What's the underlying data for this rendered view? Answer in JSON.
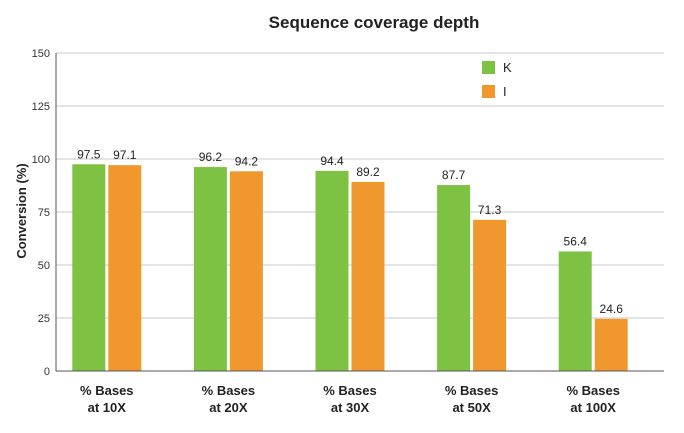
{
  "chart_data": {
    "type": "bar",
    "title": "Sequence coverage depth",
    "ylabel": "Conversion (%)",
    "xlabel": "",
    "ylim": [
      0,
      150
    ],
    "yticks": [
      0,
      25,
      50,
      75,
      100,
      125,
      150
    ],
    "grid": true,
    "legend_position": "top-right",
    "categories": [
      [
        "% Bases",
        "at 10X"
      ],
      [
        "% Bases",
        "at 20X"
      ],
      [
        "% Bases",
        "at 30X"
      ],
      [
        "% Bases",
        "at 50X"
      ],
      [
        "% Bases",
        "at 100X"
      ]
    ],
    "series": [
      {
        "name": "K",
        "color": "#7dc242",
        "values": [
          97.5,
          96.2,
          94.4,
          87.7,
          56.4
        ]
      },
      {
        "name": "I",
        "color": "#f0982e",
        "values": [
          97.1,
          94.2,
          89.2,
          71.3,
          24.6
        ]
      }
    ]
  }
}
